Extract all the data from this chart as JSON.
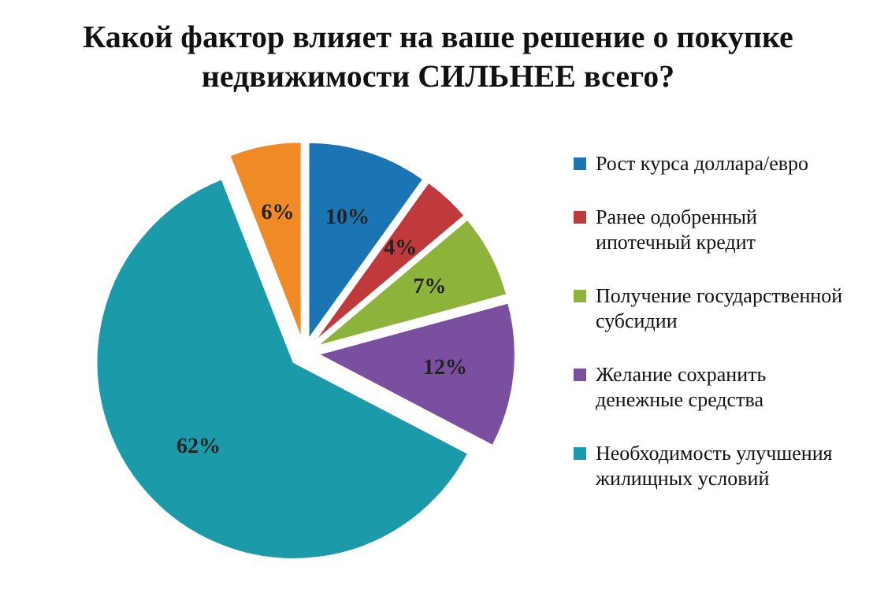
{
  "chart_data": {
    "type": "pie",
    "title": "Какой фактор влияет на ваше решение о покупке недвижимости СИЛЬНЕЕ всего?",
    "categories": [
      "Рост курса доллара/евро",
      "Ранее одобренный ипотечный кредит",
      "Получение государственной субсидии",
      "Желание сохранить денежные средства",
      "Необходимость улучшения жилищных условий",
      null
    ],
    "values": [
      10,
      4,
      7,
      12,
      62,
      6
    ],
    "colors": [
      "#1b75b5",
      "#c0393b",
      "#8db33a",
      "#7a4fa0",
      "#1b9aaa",
      "#f08a24"
    ],
    "value_labels": [
      "10%",
      "4%",
      "7%",
      "12%",
      "62%",
      "6%"
    ],
    "legend": "right"
  }
}
